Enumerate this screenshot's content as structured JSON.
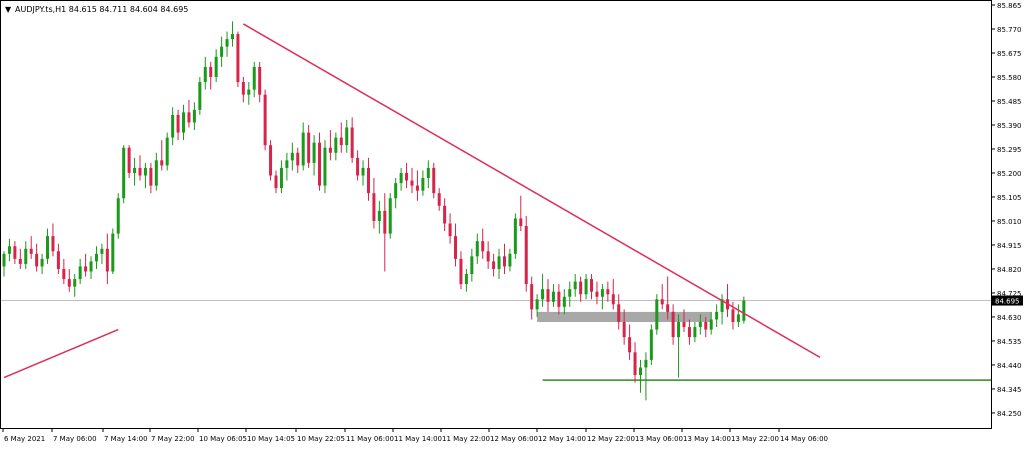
{
  "header": {
    "arrow_glyph": "▼",
    "title": "AUDJPY.ts,H1  84.615 84.711 84.604 84.695"
  },
  "colors": {
    "background": "#ffffff",
    "frame": "#000000",
    "bull": "#1a9a1a",
    "bear": "#d6244a",
    "trendline": "#dc2f57",
    "support_line": "#2e8b1f",
    "zone": "#a8a8a8",
    "price_line": "#c0c0c0",
    "price_label_bg": "#000000",
    "price_label_text": "#ffffff"
  },
  "chart_data": {
    "type": "candlestick",
    "symbol": "AUDJPY.ts",
    "timeframe": "H1",
    "ohlc_header": {
      "open": 84.615,
      "high": 84.711,
      "low": 84.604,
      "close": 84.695
    },
    "current_price_label": "84.695",
    "current_price": 84.695,
    "y_range": [
      84.3,
      85.88
    ],
    "y_ticks": [
      "85.865",
      "85.770",
      "85.675",
      "85.580",
      "85.485",
      "85.390",
      "85.295",
      "85.200",
      "85.105",
      "85.010",
      "84.915",
      "84.820",
      "84.725",
      "84.630",
      "84.535",
      "84.440",
      "84.345",
      "84.250"
    ],
    "x_ticks": [
      "6 May 2021",
      "7 May 06:00",
      "7 May 14:00",
      "7 May 22:00",
      "10 May 06:05",
      "10 May 14:05",
      "10 May 22:05",
      "11 May 06:00",
      "11 May 14:00",
      "11 May 22:00",
      "12 May 06:00",
      "12 May 14:00",
      "12 May 22:00",
      "13 May 06:00",
      "13 May 14:00",
      "13 May 22:00",
      "14 May 06:00"
    ],
    "candles": [
      [
        84.83,
        84.89,
        84.79,
        84.88
      ],
      [
        84.88,
        84.94,
        84.85,
        84.91
      ],
      [
        84.91,
        84.93,
        84.84,
        84.86
      ],
      [
        84.86,
        84.9,
        84.82,
        84.84
      ],
      [
        84.84,
        84.93,
        84.82,
        84.9
      ],
      [
        84.9,
        84.95,
        84.86,
        84.88
      ],
      [
        84.88,
        84.92,
        84.81,
        84.83
      ],
      [
        84.83,
        84.88,
        84.8,
        84.86
      ],
      [
        84.86,
        84.98,
        84.84,
        84.95
      ],
      [
        84.95,
        85.0,
        84.87,
        84.89
      ],
      [
        84.89,
        84.92,
        84.8,
        84.82
      ],
      [
        84.82,
        84.86,
        84.76,
        84.78
      ],
      [
        84.78,
        84.82,
        84.73,
        84.75
      ],
      [
        84.75,
        84.8,
        84.71,
        84.78
      ],
      [
        84.78,
        84.86,
        84.76,
        84.83
      ],
      [
        84.83,
        84.88,
        84.79,
        84.81
      ],
      [
        84.81,
        84.87,
        84.78,
        84.85
      ],
      [
        84.85,
        84.91,
        84.82,
        84.88
      ],
      [
        84.88,
        84.92,
        84.84,
        84.9
      ],
      [
        84.9,
        84.96,
        84.76,
        84.81
      ],
      [
        84.81,
        84.98,
        84.8,
        84.96
      ],
      [
        84.96,
        85.12,
        84.94,
        85.1
      ],
      [
        85.1,
        85.31,
        85.08,
        85.3
      ],
      [
        85.3,
        85.31,
        85.18,
        85.2
      ],
      [
        85.2,
        85.26,
        85.15,
        85.22
      ],
      [
        85.22,
        85.27,
        85.17,
        85.19
      ],
      [
        85.19,
        85.24,
        85.14,
        85.22
      ],
      [
        85.22,
        85.24,
        85.12,
        85.15
      ],
      [
        85.15,
        85.28,
        85.13,
        85.25
      ],
      [
        85.25,
        85.33,
        85.21,
        85.23
      ],
      [
        85.23,
        85.36,
        85.21,
        85.34
      ],
      [
        85.34,
        85.46,
        85.31,
        85.43
      ],
      [
        85.43,
        85.45,
        85.33,
        85.36
      ],
      [
        85.36,
        85.47,
        85.33,
        85.44
      ],
      [
        85.44,
        85.49,
        85.38,
        85.4
      ],
      [
        85.4,
        85.48,
        85.37,
        85.45
      ],
      [
        85.45,
        85.58,
        85.43,
        85.56
      ],
      [
        85.56,
        85.66,
        85.53,
        85.62
      ],
      [
        85.62,
        85.64,
        85.53,
        85.58
      ],
      [
        85.58,
        85.69,
        85.56,
        85.66
      ],
      [
        85.66,
        85.74,
        85.62,
        85.7
      ],
      [
        85.7,
        85.76,
        85.66,
        85.73
      ],
      [
        85.73,
        85.8,
        85.7,
        85.75
      ],
      [
        85.75,
        85.76,
        85.54,
        85.56
      ],
      [
        85.56,
        85.58,
        85.48,
        85.51
      ],
      [
        85.51,
        85.56,
        85.47,
        85.53
      ],
      [
        85.53,
        85.64,
        85.5,
        85.62
      ],
      [
        85.62,
        85.64,
        85.48,
        85.51
      ],
      [
        85.51,
        85.53,
        85.29,
        85.31
      ],
      [
        85.31,
        85.33,
        85.17,
        85.19
      ],
      [
        85.19,
        85.21,
        85.12,
        85.14
      ],
      [
        85.14,
        85.25,
        85.12,
        85.22
      ],
      [
        85.22,
        85.28,
        85.17,
        85.25
      ],
      [
        85.25,
        85.32,
        85.21,
        85.28
      ],
      [
        85.28,
        85.3,
        85.2,
        85.23
      ],
      [
        85.23,
        85.4,
        85.21,
        85.36
      ],
      [
        85.36,
        85.39,
        85.22,
        85.24
      ],
      [
        85.24,
        85.35,
        85.19,
        85.32
      ],
      [
        85.32,
        85.36,
        85.13,
        85.15
      ],
      [
        85.15,
        85.33,
        85.12,
        85.3
      ],
      [
        85.3,
        85.37,
        85.25,
        85.28
      ],
      [
        85.28,
        85.36,
        85.25,
        85.34
      ],
      [
        85.34,
        85.4,
        85.28,
        85.31
      ],
      [
        85.31,
        85.41,
        85.28,
        85.38
      ],
      [
        85.38,
        85.42,
        85.24,
        85.26
      ],
      [
        85.26,
        85.29,
        85.17,
        85.19
      ],
      [
        85.19,
        85.25,
        85.15,
        85.22
      ],
      [
        85.22,
        85.26,
        85.09,
        85.12
      ],
      [
        85.12,
        85.18,
        84.98,
        85.01
      ],
      [
        85.01,
        85.09,
        84.96,
        85.05
      ],
      [
        85.05,
        85.12,
        84.81,
        84.96
      ],
      [
        84.96,
        85.12,
        84.94,
        85.1
      ],
      [
        85.1,
        85.18,
        85.06,
        85.16
      ],
      [
        85.16,
        85.22,
        85.13,
        85.2
      ],
      [
        85.2,
        85.24,
        85.14,
        85.17
      ],
      [
        85.17,
        85.22,
        85.12,
        85.15
      ],
      [
        85.15,
        85.21,
        85.09,
        85.13
      ],
      [
        85.13,
        85.21,
        85.11,
        85.18
      ],
      [
        85.18,
        85.25,
        85.14,
        85.22
      ],
      [
        85.22,
        85.24,
        85.1,
        85.12
      ],
      [
        85.12,
        85.14,
        85.05,
        85.07
      ],
      [
        85.07,
        85.1,
        84.97,
        85.0
      ],
      [
        85.0,
        85.04,
        84.92,
        84.95
      ],
      [
        84.95,
        85.0,
        84.83,
        84.86
      ],
      [
        84.86,
        84.89,
        84.74,
        84.76
      ],
      [
        84.76,
        84.82,
        84.73,
        84.8
      ],
      [
        84.8,
        84.9,
        84.77,
        84.87
      ],
      [
        84.87,
        84.96,
        84.84,
        84.93
      ],
      [
        84.93,
        84.98,
        84.86,
        84.89
      ],
      [
        84.89,
        84.93,
        84.82,
        84.85
      ],
      [
        84.85,
        84.88,
        84.79,
        84.82
      ],
      [
        84.82,
        84.9,
        84.78,
        84.87
      ],
      [
        84.87,
        84.92,
        84.8,
        84.83
      ],
      [
        84.83,
        84.9,
        84.81,
        84.88
      ],
      [
        84.88,
        85.04,
        84.86,
        85.02
      ],
      [
        85.02,
        85.11,
        84.97,
        84.99
      ],
      [
        84.99,
        85.03,
        84.73,
        84.76
      ],
      [
        84.76,
        84.79,
        84.62,
        84.66
      ],
      [
        84.66,
        84.72,
        84.63,
        84.7
      ],
      [
        84.7,
        84.8,
        84.67,
        84.74
      ],
      [
        84.74,
        84.78,
        84.65,
        84.69
      ],
      [
        84.69,
        84.76,
        84.67,
        84.73
      ],
      [
        84.73,
        84.76,
        84.64,
        84.67
      ],
      [
        84.67,
        84.74,
        84.64,
        84.71
      ],
      [
        84.71,
        84.77,
        84.67,
        84.74
      ],
      [
        84.74,
        84.8,
        84.71,
        84.77
      ],
      [
        84.77,
        84.79,
        84.69,
        84.72
      ],
      [
        84.72,
        84.8,
        84.7,
        84.78
      ],
      [
        84.78,
        84.8,
        84.7,
        84.73
      ],
      [
        84.73,
        84.77,
        84.68,
        84.71
      ],
      [
        84.71,
        84.76,
        84.66,
        84.74
      ],
      [
        84.74,
        84.77,
        84.69,
        84.72
      ],
      [
        84.72,
        84.78,
        84.66,
        84.68
      ],
      [
        84.68,
        84.72,
        84.58,
        84.61
      ],
      [
        84.61,
        84.66,
        84.52,
        84.55
      ],
      [
        84.55,
        84.6,
        84.46,
        84.49
      ],
      [
        84.49,
        84.53,
        84.37,
        84.4
      ],
      [
        84.4,
        84.46,
        84.33,
        84.43
      ],
      [
        84.43,
        84.49,
        84.3,
        84.46
      ],
      [
        84.46,
        84.6,
        84.44,
        84.58
      ],
      [
        84.58,
        84.72,
        84.56,
        84.7
      ],
      [
        84.7,
        84.76,
        84.66,
        84.68
      ],
      [
        84.68,
        84.79,
        84.62,
        84.65
      ],
      [
        84.65,
        84.68,
        84.52,
        84.55
      ],
      [
        84.55,
        84.64,
        84.39,
        84.61
      ],
      [
        84.61,
        84.66,
        84.57,
        84.59
      ],
      [
        84.59,
        84.62,
        84.52,
        84.55
      ],
      [
        84.55,
        84.61,
        84.53,
        84.59
      ],
      [
        84.59,
        84.64,
        84.56,
        84.61
      ],
      [
        84.61,
        84.63,
        84.55,
        84.58
      ],
      [
        84.58,
        84.65,
        84.56,
        84.62
      ],
      [
        84.62,
        84.68,
        84.59,
        84.65
      ],
      [
        84.65,
        84.72,
        84.6,
        84.7
      ],
      [
        84.7,
        84.76,
        84.63,
        84.66
      ],
      [
        84.66,
        84.69,
        84.58,
        84.61
      ],
      [
        84.61,
        84.68,
        84.59,
        84.64
      ],
      [
        84.615,
        84.711,
        84.604,
        84.695
      ]
    ],
    "trendlines": [
      {
        "from_index": 44,
        "from_price": 85.79,
        "to_index": 150,
        "to_price": 84.47,
        "color": "#dc2f57"
      },
      {
        "from_index": 0,
        "from_price": 84.39,
        "to_index": 21,
        "to_price": 84.58,
        "color": "#dc2f57"
      }
    ],
    "support_line": {
      "price": 84.38,
      "from_index": 99,
      "color": "#2e8b1f"
    },
    "zone": {
      "from_index": 98,
      "to_index": 130,
      "price_top": 84.65,
      "price_bottom": 84.61,
      "color": "#a8a8a8"
    },
    "grid": false,
    "legend": "none"
  }
}
